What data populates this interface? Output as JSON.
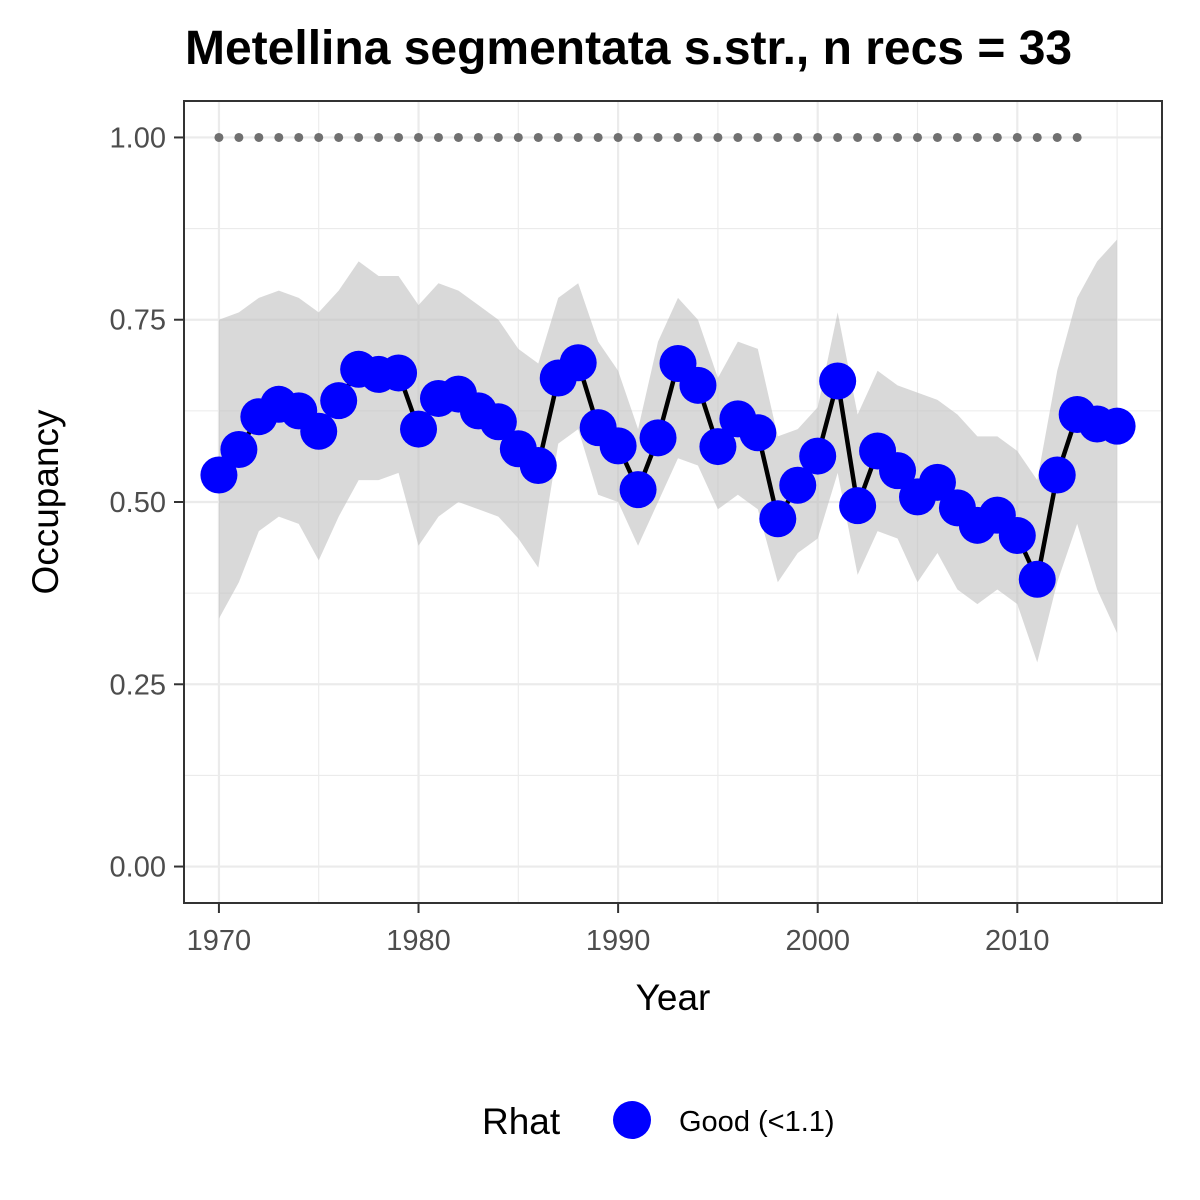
{
  "chart_data": {
    "type": "line",
    "title": "Metellina segmentata s.str., n recs = 33",
    "xlabel": "Year",
    "ylabel": "Occupancy",
    "xlim": [
      1968.25,
      2017.25
    ],
    "ylim": [
      -0.05,
      1.05
    ],
    "x_ticks": [
      1970,
      1980,
      1990,
      2000,
      2010
    ],
    "x_tick_labels": [
      "1970",
      "1980",
      "1990",
      "2000",
      "2010"
    ],
    "y_ticks": [
      0,
      0.25,
      0.5,
      0.75,
      1.0
    ],
    "y_tick_labels": [
      "0.00",
      "0.25",
      "0.50",
      "0.75",
      "1.00"
    ],
    "grid": true,
    "legend": {
      "title": "Rhat",
      "placement": "bottom",
      "entries": [
        {
          "label": "Good (<1.1)",
          "color": "#0000ff"
        }
      ]
    },
    "colors": {
      "points": "#0000ff",
      "line": "#000000",
      "ribbon": "#bfbfbf",
      "records": "#707070"
    },
    "series": [
      {
        "type": "ribbon",
        "x": [
          1970,
          1971,
          1972,
          1973,
          1974,
          1975,
          1976,
          1977,
          1978,
          1979,
          1980,
          1981,
          1982,
          1983,
          1984,
          1985,
          1986,
          1987,
          1988,
          1989,
          1990,
          1991,
          1992,
          1993,
          1994,
          1995,
          1996,
          1997,
          1998,
          1999,
          2000,
          2001,
          2002,
          2003,
          2004,
          2005,
          2006,
          2007,
          2008,
          2009,
          2010,
          2011,
          2012,
          2013,
          2014,
          2015
        ],
        "lower": [
          0.34,
          0.39,
          0.46,
          0.48,
          0.47,
          0.42,
          0.48,
          0.53,
          0.53,
          0.54,
          0.44,
          0.48,
          0.5,
          0.49,
          0.48,
          0.45,
          0.41,
          0.58,
          0.6,
          0.51,
          0.5,
          0.44,
          0.5,
          0.56,
          0.55,
          0.49,
          0.51,
          0.49,
          0.39,
          0.43,
          0.45,
          0.54,
          0.4,
          0.46,
          0.45,
          0.39,
          0.43,
          0.38,
          0.36,
          0.38,
          0.36,
          0.28,
          0.39,
          0.47,
          0.38,
          0.32
        ],
        "upper": [
          0.75,
          0.76,
          0.78,
          0.79,
          0.78,
          0.76,
          0.79,
          0.83,
          0.81,
          0.81,
          0.77,
          0.8,
          0.79,
          0.77,
          0.75,
          0.71,
          0.69,
          0.78,
          0.8,
          0.72,
          0.68,
          0.6,
          0.72,
          0.78,
          0.75,
          0.67,
          0.72,
          0.71,
          0.59,
          0.6,
          0.63,
          0.76,
          0.62,
          0.68,
          0.66,
          0.65,
          0.64,
          0.62,
          0.59,
          0.59,
          0.57,
          0.53,
          0.68,
          0.78,
          0.83,
          0.86
        ]
      },
      {
        "type": "line",
        "name": "Good (<1.1)",
        "x": [
          1970,
          1971,
          1972,
          1973,
          1974,
          1975,
          1976,
          1977,
          1978,
          1979,
          1980,
          1981,
          1982,
          1983,
          1984,
          1985,
          1986,
          1987,
          1988,
          1989,
          1990,
          1991,
          1992,
          1993,
          1994,
          1995,
          1996,
          1997,
          1998,
          1999,
          2000,
          2001,
          2002,
          2003,
          2004,
          2005,
          2006,
          2007,
          2008,
          2009,
          2010,
          2011,
          2012,
          2013,
          2014,
          2015
        ],
        "y": [
          0.537,
          0.572,
          0.617,
          0.634,
          0.625,
          0.597,
          0.639,
          0.682,
          0.675,
          0.677,
          0.6,
          0.642,
          0.648,
          0.625,
          0.61,
          0.573,
          0.55,
          0.67,
          0.691,
          0.602,
          0.577,
          0.517,
          0.588,
          0.69,
          0.66,
          0.576,
          0.614,
          0.595,
          0.477,
          0.523,
          0.563,
          0.666,
          0.495,
          0.57,
          0.543,
          0.507,
          0.527,
          0.492,
          0.468,
          0.482,
          0.454,
          0.394,
          0.537,
          0.62,
          0.607,
          0.604
        ]
      },
      {
        "type": "scatter",
        "name": "records",
        "x": [
          1970,
          1971,
          1972,
          1973,
          1974,
          1975,
          1976,
          1977,
          1978,
          1979,
          1980,
          1981,
          1982,
          1983,
          1984,
          1985,
          1986,
          1987,
          1988,
          1989,
          1990,
          1991,
          1992,
          1993,
          1994,
          1995,
          1996,
          1997,
          1998,
          1999,
          2000,
          2001,
          2002,
          2003,
          2004,
          2005,
          2006,
          2007,
          2008,
          2009,
          2010,
          2011,
          2012,
          2013
        ],
        "y": [
          1,
          1,
          1,
          1,
          1,
          1,
          1,
          1,
          1,
          1,
          1,
          1,
          1,
          1,
          1,
          1,
          1,
          1,
          1,
          1,
          1,
          1,
          1,
          1,
          1,
          1,
          1,
          1,
          1,
          1,
          1,
          1,
          1,
          1,
          1,
          1,
          1,
          1,
          1,
          1,
          1,
          1,
          1,
          1
        ]
      }
    ]
  }
}
